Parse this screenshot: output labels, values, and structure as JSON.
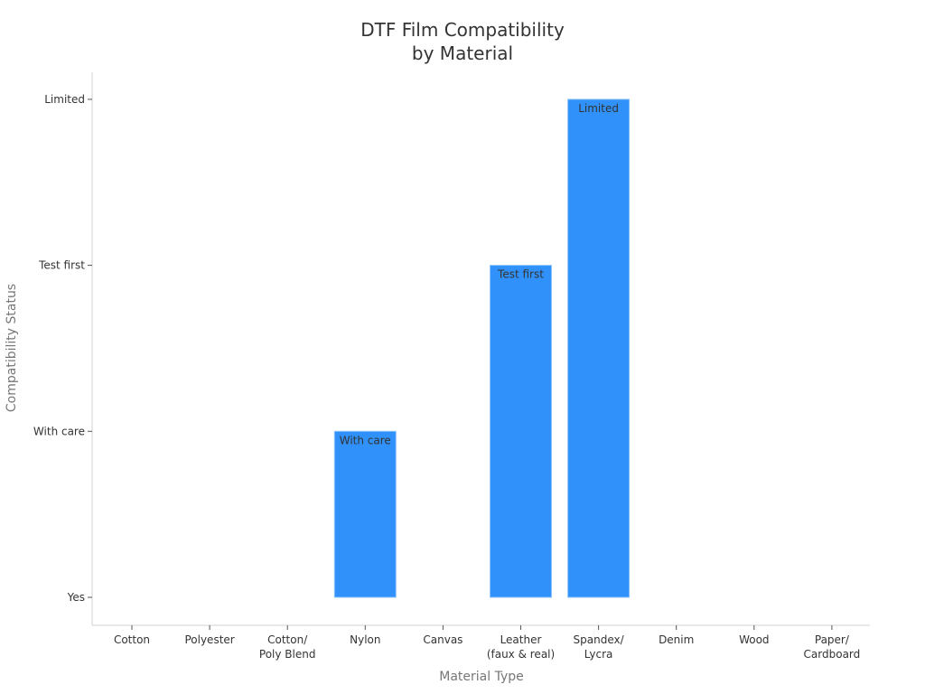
{
  "chart_data": {
    "type": "bar",
    "title": "DTF Film Compatibility by Material",
    "title_lines": [
      "DTF Film Compatibility",
      "by Material"
    ],
    "xlabel": "Material Type",
    "ylabel": "Compatibility Status",
    "categories": [
      "Cotton",
      "Polyester",
      "Cotton/ Poly Blend",
      "Nylon",
      "Canvas",
      "Leather (faux & real)",
      "Spandex/ Lycra",
      "Denim",
      "Wood",
      "Paper/ Cardboard"
    ],
    "category_lines": [
      [
        "Cotton"
      ],
      [
        "Polyester"
      ],
      [
        "Cotton/",
        "Poly Blend"
      ],
      [
        "Nylon"
      ],
      [
        "Canvas"
      ],
      [
        "Leather",
        "(faux & real)"
      ],
      [
        "Spandex/",
        "Lycra"
      ],
      [
        "Denim"
      ],
      [
        "Wood"
      ],
      [
        "Paper/",
        "Cardboard"
      ]
    ],
    "y_ticks": [
      "Yes",
      "With care",
      "Test first",
      "Limited"
    ],
    "y_tick_values": [
      0,
      1,
      2,
      3
    ],
    "values": [
      0,
      0,
      0,
      1,
      0,
      2,
      3,
      0,
      0,
      0
    ],
    "value_labels": [
      "Yes",
      "Yes",
      "Yes",
      "With care",
      "Yes",
      "Test first",
      "Limited",
      "Yes",
      "Yes",
      "Yes"
    ],
    "bar_annotations": [
      "",
      "",
      "",
      "With care",
      "",
      "Test first",
      "Limited",
      "",
      "",
      ""
    ],
    "ylim": [
      -0.17,
      3.17
    ],
    "grid": false,
    "legend": null,
    "colors": {
      "bar": "#2f91f9",
      "bar_edge": "#8ec3fb",
      "axis": "#d0d0d0",
      "text": "#333333",
      "axis_label": "#777777"
    }
  }
}
